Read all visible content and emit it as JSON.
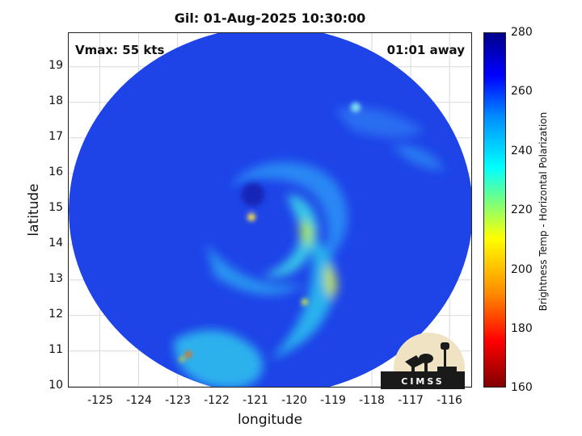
{
  "title": "Gil: 01-Aug-2025 10:30:00",
  "vmax_label": "Vmax: 55 kts",
  "time_away_label": "01:01 away",
  "xaxis_label": "longitude",
  "yaxis_label": "latitude",
  "x_ticks": [
    "-125",
    "-124",
    "-123",
    "-122",
    "-121",
    "-120",
    "-119",
    "-118",
    "-117",
    "-116"
  ],
  "y_ticks": [
    "19",
    "18",
    "17",
    "16",
    "15",
    "14",
    "13",
    "12",
    "11",
    "10"
  ],
  "colorbar": {
    "label": "Brightness Temp - Horizontal Polarization",
    "ticks": [
      "280",
      "260",
      "240",
      "220",
      "200",
      "180",
      "160"
    ],
    "colors": [
      "#800000",
      "#ff0000",
      "#ff8800",
      "#ffff00",
      "#7dff7a",
      "#00ffff",
      "#0090ff",
      "#0000ff",
      "#00008a"
    ]
  },
  "logo_text": "CIMSS",
  "map": {
    "lon_range": [
      -125.8,
      -115.4
    ],
    "lat_range": [
      9.95,
      19.95
    ],
    "grid": true,
    "storm_center": {
      "lon": -120.7,
      "lat": 15.1
    },
    "background_color": "#1a3fe6"
  }
}
